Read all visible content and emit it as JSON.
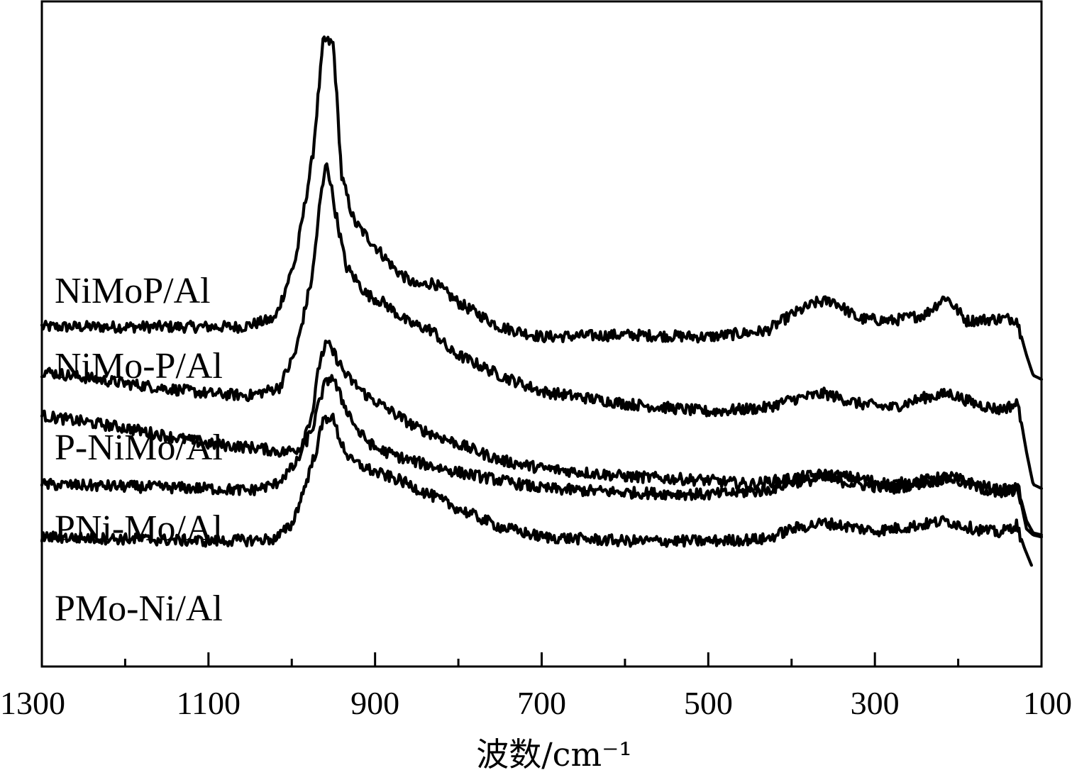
{
  "chart_data": {
    "type": "line",
    "title": "",
    "xlabel": "波数/cm⁻¹",
    "ylabel": "",
    "xlim": [
      1300,
      100
    ],
    "x_reversed": true,
    "x_ticks": [
      1300,
      1100,
      900,
      700,
      500,
      300,
      100
    ],
    "y_ticks_visible": false,
    "grid": false,
    "legend": "none (series labels printed at left of each curve)",
    "line_color": "#000000",
    "series": [
      {
        "name": "NiMoP/Al",
        "points": [
          [
            1300,
            0.3
          ],
          [
            1200,
            0.3
          ],
          [
            1060,
            0.3
          ],
          [
            1020,
            0.5
          ],
          [
            995,
            2.0
          ],
          [
            975,
            4.5
          ],
          [
            962,
            7.4
          ],
          [
            950,
            7.3
          ],
          [
            940,
            4.0
          ],
          [
            925,
            2.9
          ],
          [
            900,
            2.3
          ],
          [
            875,
            1.7
          ],
          [
            850,
            1.3
          ],
          [
            830,
            1.4
          ],
          [
            800,
            0.9
          ],
          [
            750,
            0.3
          ],
          [
            700,
            0.05
          ],
          [
            600,
            0.1
          ],
          [
            500,
            0.05
          ],
          [
            430,
            0.2
          ],
          [
            400,
            0.6
          ],
          [
            370,
            0.9
          ],
          [
            350,
            0.95
          ],
          [
            320,
            0.5
          ],
          [
            280,
            0.45
          ],
          [
            240,
            0.6
          ],
          [
            215,
            1.05
          ],
          [
            190,
            0.45
          ],
          [
            150,
            0.5
          ],
          [
            130,
            0.5
          ],
          [
            118,
            -0.4
          ],
          [
            110,
            -0.9
          ],
          [
            100,
            -1.0
          ]
        ]
      },
      {
        "name": "NiMo-P/Al",
        "points": [
          [
            1300,
            -0.8
          ],
          [
            1200,
            -1.1
          ],
          [
            1100,
            -1.35
          ],
          [
            1050,
            -1.4
          ],
          [
            1015,
            -1.2
          ],
          [
            995,
            -0.3
          ],
          [
            975,
            1.6
          ],
          [
            966,
            3.4
          ],
          [
            958,
            4.4
          ],
          [
            948,
            3.2
          ],
          [
            935,
            1.8
          ],
          [
            910,
            1.1
          ],
          [
            890,
            0.9
          ],
          [
            860,
            0.4
          ],
          [
            830,
            0.2
          ],
          [
            810,
            -0.3
          ],
          [
            750,
            -0.9
          ],
          [
            700,
            -1.3
          ],
          [
            600,
            -1.6
          ],
          [
            500,
            -1.8
          ],
          [
            430,
            -1.7
          ],
          [
            400,
            -1.5
          ],
          [
            360,
            -1.35
          ],
          [
            320,
            -1.6
          ],
          [
            280,
            -1.7
          ],
          [
            240,
            -1.45
          ],
          [
            210,
            -1.35
          ],
          [
            180,
            -1.6
          ],
          [
            150,
            -1.75
          ],
          [
            128,
            -1.6
          ],
          [
            118,
            -2.8
          ],
          [
            110,
            -3.6
          ],
          [
            100,
            -3.7
          ]
        ]
      },
      {
        "name": "P-NiMo/Al",
        "points": [
          [
            1300,
            -1.9
          ],
          [
            1200,
            -2.2
          ],
          [
            1100,
            -2.6
          ],
          [
            1040,
            -2.7
          ],
          [
            1010,
            -2.8
          ],
          [
            990,
            -2.7
          ],
          [
            975,
            -1.8
          ],
          [
            966,
            -0.5
          ],
          [
            958,
            -0.1
          ],
          [
            948,
            -0.4
          ],
          [
            935,
            -0.9
          ],
          [
            910,
            -1.4
          ],
          [
            880,
            -1.8
          ],
          [
            850,
            -2.2
          ],
          [
            800,
            -2.6
          ],
          [
            750,
            -3.0
          ],
          [
            700,
            -3.2
          ],
          [
            600,
            -3.4
          ],
          [
            500,
            -3.5
          ],
          [
            450,
            -3.6
          ],
          [
            400,
            -3.45
          ],
          [
            360,
            -3.35
          ],
          [
            320,
            -3.45
          ],
          [
            280,
            -3.6
          ],
          [
            240,
            -3.5
          ],
          [
            210,
            -3.4
          ],
          [
            180,
            -3.6
          ],
          [
            150,
            -3.75
          ],
          [
            128,
            -3.7
          ],
          [
            118,
            -4.7
          ],
          [
            110,
            -4.85
          ],
          [
            100,
            -4.9
          ]
        ]
      },
      {
        "name": "PNi-Mo/Al",
        "points": [
          [
            1300,
            -3.6
          ],
          [
            1200,
            -3.65
          ],
          [
            1100,
            -3.7
          ],
          [
            1050,
            -3.75
          ],
          [
            1020,
            -3.6
          ],
          [
            995,
            -3.1
          ],
          [
            975,
            -2.2
          ],
          [
            962,
            -1.2
          ],
          [
            952,
            -0.9
          ],
          [
            940,
            -1.5
          ],
          [
            920,
            -2.3
          ],
          [
            900,
            -2.7
          ],
          [
            860,
            -3.0
          ],
          [
            800,
            -3.3
          ],
          [
            750,
            -3.5
          ],
          [
            700,
            -3.7
          ],
          [
            600,
            -3.8
          ],
          [
            500,
            -3.85
          ],
          [
            430,
            -3.75
          ],
          [
            400,
            -3.55
          ],
          [
            360,
            -3.45
          ],
          [
            320,
            -3.6
          ],
          [
            280,
            -3.7
          ],
          [
            240,
            -3.55
          ],
          [
            210,
            -3.45
          ],
          [
            180,
            -3.65
          ],
          [
            150,
            -3.85
          ],
          [
            128,
            -3.7
          ],
          [
            118,
            -4.5
          ],
          [
            110,
            -4.8
          ],
          [
            100,
            -4.85
          ]
        ]
      },
      {
        "name": "PMo-Ni/Al",
        "points": [
          [
            1300,
            -4.9
          ],
          [
            1200,
            -4.95
          ],
          [
            1100,
            -5.0
          ],
          [
            1050,
            -4.98
          ],
          [
            1020,
            -4.95
          ],
          [
            1000,
            -4.6
          ],
          [
            985,
            -3.7
          ],
          [
            970,
            -2.7
          ],
          [
            962,
            -2.0
          ],
          [
            952,
            -1.9
          ],
          [
            942,
            -2.5
          ],
          [
            930,
            -3.0
          ],
          [
            900,
            -3.3
          ],
          [
            870,
            -3.5
          ],
          [
            840,
            -3.8
          ],
          [
            800,
            -4.2
          ],
          [
            750,
            -4.65
          ],
          [
            700,
            -4.9
          ],
          [
            600,
            -5.0
          ],
          [
            500,
            -5.0
          ],
          [
            430,
            -4.95
          ],
          [
            400,
            -4.7
          ],
          [
            360,
            -4.55
          ],
          [
            330,
            -4.65
          ],
          [
            300,
            -4.75
          ],
          [
            260,
            -4.65
          ],
          [
            215,
            -4.5
          ],
          [
            180,
            -4.7
          ],
          [
            150,
            -4.8
          ],
          [
            130,
            -4.6
          ],
          [
            120,
            -5.2
          ],
          [
            112,
            -5.6
          ]
        ]
      }
    ]
  }
}
